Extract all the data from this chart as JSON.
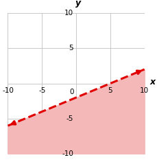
{
  "xlim": [
    -10,
    10
  ],
  "ylim": [
    -10,
    10
  ],
  "xticks": [
    -10,
    -5,
    0,
    5,
    10
  ],
  "yticks": [
    -10,
    -5,
    5,
    10
  ],
  "xlabel": "x",
  "ylabel": "y",
  "line_color": "#e00000",
  "shade_color": "#f5b8b8",
  "shade_alpha": 1.0,
  "line_dash": "--",
  "line_width": 2.2,
  "grid_color": "#c0c0c0",
  "grid_linewidth": 0.6,
  "background_color": "#ffffff",
  "tick_fontsize": 7.5
}
